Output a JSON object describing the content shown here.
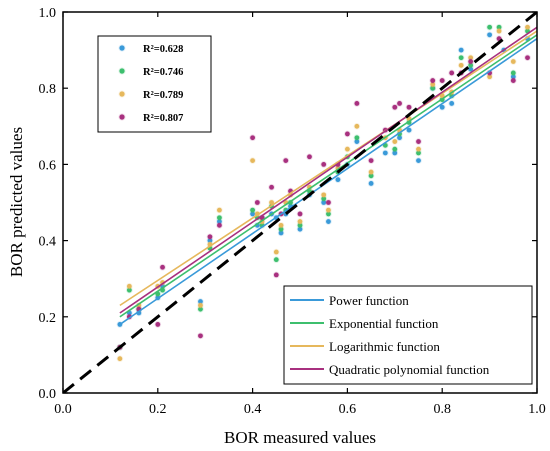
{
  "chart_data": {
    "type": "scatter",
    "title": "",
    "xlabel": "BOR measured values",
    "ylabel": "BOR predicted values",
    "xlim": [
      0.0,
      1.0
    ],
    "ylim": [
      0.0,
      1.0
    ],
    "x_ticks": [
      "0.0",
      "0.2",
      "0.4",
      "0.6",
      "0.8",
      "1.0"
    ],
    "y_ticks": [
      "0.0",
      "0.2",
      "0.4",
      "0.6",
      "0.8",
      "1.0"
    ],
    "grid": false,
    "reference_line": {
      "style": "dashed",
      "color": "#000000",
      "from": [
        0,
        0
      ],
      "to": [
        1,
        1
      ]
    },
    "legend": {
      "position": "bottom-right",
      "entries": [
        "Power function",
        "Exponential function",
        "Logarithmic function",
        "Quadratic polynomial function"
      ]
    },
    "r2_box": {
      "position": "top-left",
      "entries": [
        "R²=0.628",
        "R²=0.746",
        "R²=0.789",
        "R²=0.807"
      ]
    },
    "series": [
      {
        "name": "Power function",
        "color": "#3a9ad9",
        "fit": [
          [
            0.12,
            0.18
          ],
          [
            1.0,
            0.93
          ]
        ],
        "points": [
          [
            0.12,
            0.18
          ],
          [
            0.14,
            0.21
          ],
          [
            0.16,
            0.21
          ],
          [
            0.2,
            0.25
          ],
          [
            0.21,
            0.28
          ],
          [
            0.29,
            0.24
          ],
          [
            0.31,
            0.4
          ],
          [
            0.33,
            0.45
          ],
          [
            0.4,
            0.47
          ],
          [
            0.41,
            0.44
          ],
          [
            0.42,
            0.46
          ],
          [
            0.44,
            0.47
          ],
          [
            0.45,
            0.46
          ],
          [
            0.46,
            0.42
          ],
          [
            0.47,
            0.47
          ],
          [
            0.48,
            0.49
          ],
          [
            0.5,
            0.43
          ],
          [
            0.52,
            0.52
          ],
          [
            0.55,
            0.5
          ],
          [
            0.56,
            0.45
          ],
          [
            0.58,
            0.56
          ],
          [
            0.6,
            0.6
          ],
          [
            0.62,
            0.66
          ],
          [
            0.65,
            0.55
          ],
          [
            0.68,
            0.63
          ],
          [
            0.7,
            0.63
          ],
          [
            0.71,
            0.67
          ],
          [
            0.73,
            0.69
          ],
          [
            0.75,
            0.61
          ],
          [
            0.78,
            0.8
          ],
          [
            0.8,
            0.75
          ],
          [
            0.82,
            0.76
          ],
          [
            0.84,
            0.9
          ],
          [
            0.86,
            0.85
          ],
          [
            0.9,
            0.94
          ],
          [
            0.93,
            0.9
          ],
          [
            0.95,
            0.83
          ],
          [
            0.98,
            0.93
          ]
        ]
      },
      {
        "name": "Exponential function",
        "color": "#3dbf6e",
        "fit": [
          [
            0.12,
            0.2
          ],
          [
            1.0,
            0.94
          ]
        ],
        "points": [
          [
            0.12,
            0.12
          ],
          [
            0.14,
            0.27
          ],
          [
            0.16,
            0.22
          ],
          [
            0.2,
            0.26
          ],
          [
            0.21,
            0.27
          ],
          [
            0.29,
            0.22
          ],
          [
            0.31,
            0.38
          ],
          [
            0.33,
            0.46
          ],
          [
            0.4,
            0.48
          ],
          [
            0.41,
            0.46
          ],
          [
            0.42,
            0.44
          ],
          [
            0.44,
            0.49
          ],
          [
            0.45,
            0.35
          ],
          [
            0.46,
            0.43
          ],
          [
            0.47,
            0.48
          ],
          [
            0.48,
            0.5
          ],
          [
            0.5,
            0.44
          ],
          [
            0.52,
            0.53
          ],
          [
            0.55,
            0.51
          ],
          [
            0.56,
            0.47
          ],
          [
            0.58,
            0.58
          ],
          [
            0.6,
            0.62
          ],
          [
            0.62,
            0.67
          ],
          [
            0.65,
            0.57
          ],
          [
            0.68,
            0.65
          ],
          [
            0.7,
            0.64
          ],
          [
            0.71,
            0.68
          ],
          [
            0.73,
            0.71
          ],
          [
            0.75,
            0.63
          ],
          [
            0.78,
            0.8
          ],
          [
            0.8,
            0.77
          ],
          [
            0.82,
            0.78
          ],
          [
            0.84,
            0.88
          ],
          [
            0.86,
            0.86
          ],
          [
            0.9,
            0.96
          ],
          [
            0.92,
            0.96
          ],
          [
            0.95,
            0.84
          ],
          [
            0.98,
            0.95
          ]
        ]
      },
      {
        "name": "Logarithmic function",
        "color": "#e6b85c",
        "fit": [
          [
            0.12,
            0.23
          ],
          [
            1.0,
            0.95
          ]
        ],
        "points": [
          [
            0.12,
            0.09
          ],
          [
            0.14,
            0.28
          ],
          [
            0.16,
            0.23
          ],
          [
            0.2,
            0.28
          ],
          [
            0.21,
            0.29
          ],
          [
            0.29,
            0.23
          ],
          [
            0.31,
            0.39
          ],
          [
            0.33,
            0.48
          ],
          [
            0.4,
            0.61
          ],
          [
            0.41,
            0.47
          ],
          [
            0.42,
            0.45
          ],
          [
            0.44,
            0.5
          ],
          [
            0.45,
            0.37
          ],
          [
            0.46,
            0.44
          ],
          [
            0.47,
            0.5
          ],
          [
            0.48,
            0.52
          ],
          [
            0.5,
            0.45
          ],
          [
            0.52,
            0.54
          ],
          [
            0.55,
            0.52
          ],
          [
            0.56,
            0.48
          ],
          [
            0.58,
            0.59
          ],
          [
            0.6,
            0.64
          ],
          [
            0.62,
            0.7
          ],
          [
            0.65,
            0.58
          ],
          [
            0.68,
            0.67
          ],
          [
            0.7,
            0.66
          ],
          [
            0.71,
            0.69
          ],
          [
            0.73,
            0.72
          ],
          [
            0.75,
            0.64
          ],
          [
            0.78,
            0.81
          ],
          [
            0.8,
            0.78
          ],
          [
            0.82,
            0.79
          ],
          [
            0.84,
            0.86
          ],
          [
            0.86,
            0.88
          ],
          [
            0.9,
            0.83
          ],
          [
            0.92,
            0.95
          ],
          [
            0.95,
            0.87
          ],
          [
            0.98,
            0.96
          ]
        ]
      },
      {
        "name": "Quadratic polynomial function",
        "color": "#a8307f",
        "fit": [
          [
            0.12,
            0.21
          ],
          [
            1.0,
            0.96
          ]
        ],
        "points": [
          [
            0.12,
            0.12
          ],
          [
            0.14,
            0.2
          ],
          [
            0.16,
            0.22
          ],
          [
            0.2,
            0.18
          ],
          [
            0.21,
            0.33
          ],
          [
            0.29,
            0.15
          ],
          [
            0.31,
            0.41
          ],
          [
            0.33,
            0.44
          ],
          [
            0.4,
            0.67
          ],
          [
            0.41,
            0.5
          ],
          [
            0.42,
            0.46
          ],
          [
            0.44,
            0.54
          ],
          [
            0.45,
            0.31
          ],
          [
            0.46,
            0.47
          ],
          [
            0.47,
            0.61
          ],
          [
            0.48,
            0.53
          ],
          [
            0.5,
            0.47
          ],
          [
            0.52,
            0.62
          ],
          [
            0.55,
            0.6
          ],
          [
            0.56,
            0.5
          ],
          [
            0.58,
            0.6
          ],
          [
            0.6,
            0.68
          ],
          [
            0.62,
            0.76
          ],
          [
            0.65,
            0.61
          ],
          [
            0.68,
            0.69
          ],
          [
            0.7,
            0.75
          ],
          [
            0.71,
            0.76
          ],
          [
            0.73,
            0.75
          ],
          [
            0.75,
            0.66
          ],
          [
            0.78,
            0.82
          ],
          [
            0.8,
            0.82
          ],
          [
            0.82,
            0.84
          ],
          [
            0.84,
            0.84
          ],
          [
            0.86,
            0.87
          ],
          [
            0.9,
            0.84
          ],
          [
            0.92,
            0.93
          ],
          [
            0.95,
            0.82
          ],
          [
            0.98,
            0.88
          ]
        ]
      }
    ]
  }
}
